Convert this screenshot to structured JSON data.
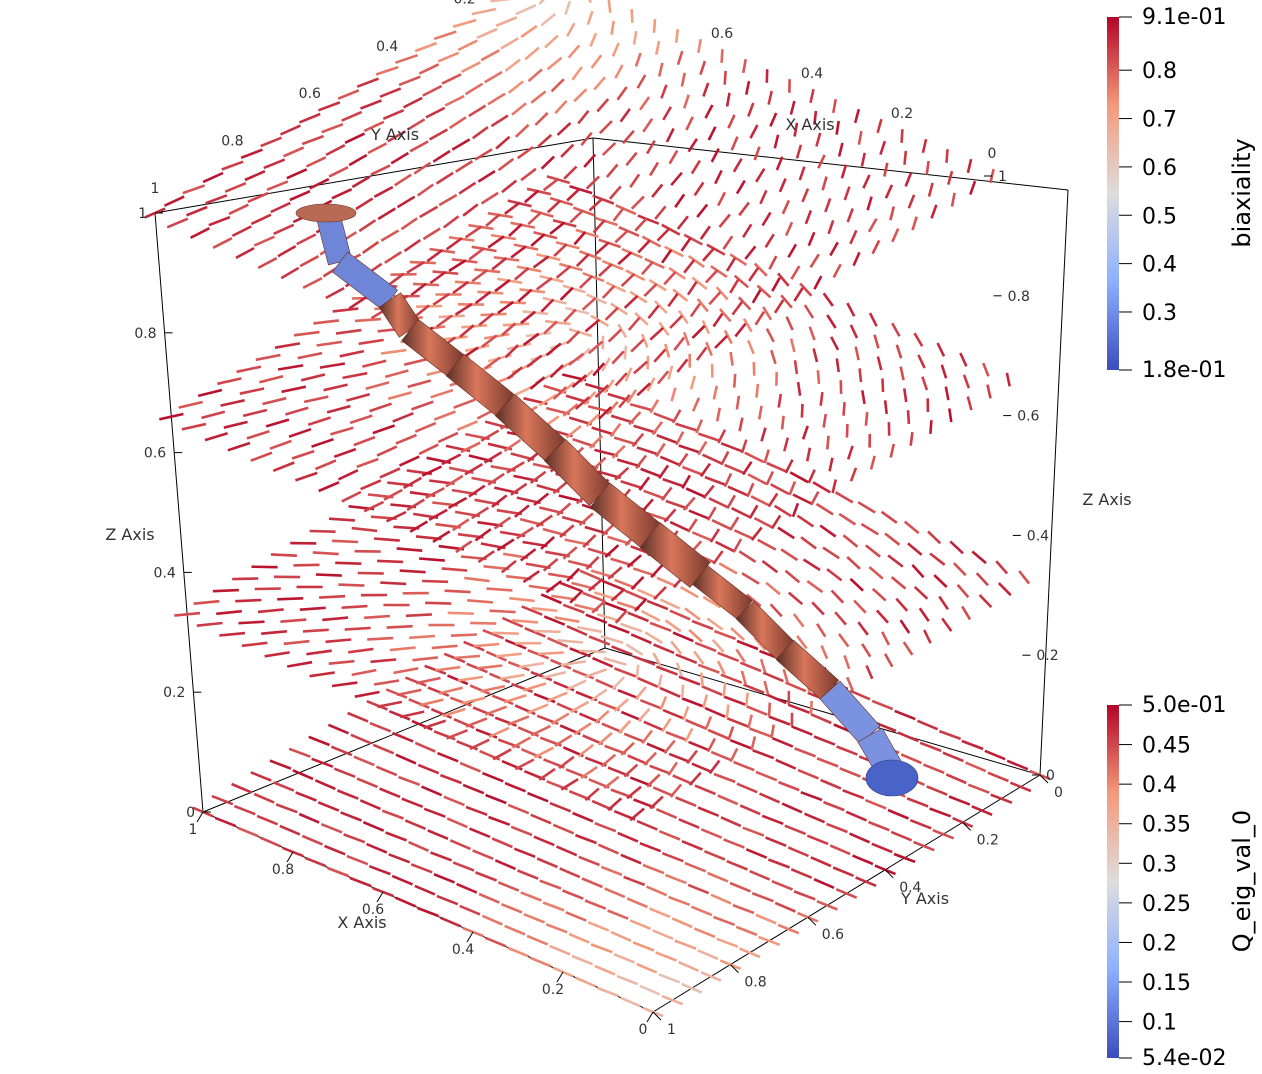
{
  "scene": {
    "x_axis": {
      "title": "X Axis",
      "ticks": [
        "1",
        "0.8",
        "0.6",
        "0.4",
        "0.2",
        "0"
      ]
    },
    "y_axis": {
      "title": "Y Axis",
      "ticks": [
        "0",
        "0.2",
        "0.4",
        "0.6",
        "0.8",
        "1"
      ]
    },
    "z_axis": {
      "title": "Z Axis",
      "ticks": [
        "0",
        "0.2",
        "0.4",
        "0.6",
        "0.8",
        "1"
      ]
    },
    "glyph_slices": 4,
    "defect_tube": "biaxiality isosurface"
  },
  "colorbars": [
    {
      "title": "biaxiality",
      "max_label": "9.1e-01",
      "min_label": "1.8e-01",
      "ticks": [
        "0.8",
        "0.7",
        "0.6",
        "0.5",
        "0.4",
        "0.3"
      ],
      "range": [
        0.18,
        0.91
      ],
      "tick_values": [
        0.8,
        0.7,
        0.6,
        0.5,
        0.4,
        0.3
      ]
    },
    {
      "title": "Q_eig_val_0",
      "max_label": "5.0e-01",
      "min_label": "5.4e-02",
      "ticks": [
        "0.45",
        "0.4",
        "0.35",
        "0.3",
        "0.25",
        "0.2",
        "0.15",
        "0.1"
      ],
      "range": [
        0.054,
        0.5
      ],
      "tick_values": [
        0.45,
        0.4,
        0.35,
        0.3,
        0.25,
        0.2,
        0.15,
        0.1
      ]
    }
  ],
  "colormap": {
    "low": "#3b4cc0",
    "mid": "#dddddd",
    "high": "#b40426"
  }
}
